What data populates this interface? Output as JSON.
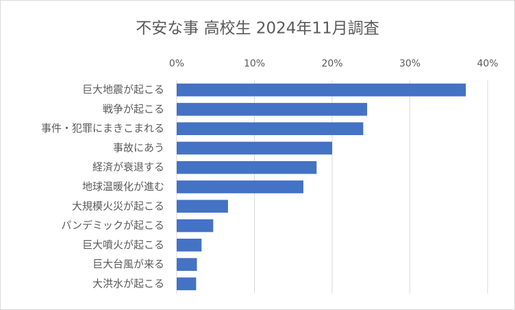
{
  "chart_data": {
    "type": "hbar",
    "title": "不安な事 高校生 2024年11月調査",
    "categories": [
      "巨大地震が起こる",
      "戦争が起こる",
      "事件・犯罪にまきこまれる",
      "事故にあう",
      "経済が衰退する",
      "地球温暖化が進む",
      "大規模火災が起こる",
      "パンデミックが起こる",
      "巨大噴火が起こる",
      "巨大台風が来る",
      "大洪水が起こる"
    ],
    "values": [
      37.2,
      24.5,
      24.0,
      20.0,
      18.0,
      16.3,
      6.6,
      4.7,
      3.2,
      2.6,
      2.5
    ],
    "color": "#4472c4",
    "xlim": [
      0,
      40
    ],
    "xticks": [
      {
        "value": 0,
        "label": "0%"
      },
      {
        "value": 10,
        "label": "10%"
      },
      {
        "value": 20,
        "label": "20%"
      },
      {
        "value": 30,
        "label": "30%"
      },
      {
        "value": 40,
        "label": "40%"
      }
    ],
    "grid": true
  }
}
